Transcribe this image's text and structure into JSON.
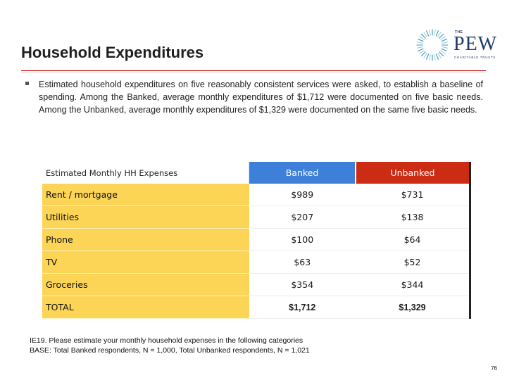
{
  "header": {
    "title": "Household Expenditures",
    "logo": {
      "small_text": "THE",
      "name": "PEW",
      "tagline": "CHARITABLE TRUSTS"
    }
  },
  "bullet": "Estimated household expenditures on five reasonably consistent services were asked, to establish a baseline of spending.  Among the Banked, average monthly expenditures of $1,712 were documented on five basic needs.  Among the Unbanked, average monthly expenditures of $1,329 were documented on the same five basic needs.",
  "table": {
    "header_label": "Estimated Monthly HH Expenses",
    "col_banked": "Banked",
    "col_unbanked": "Unbanked",
    "rows": [
      {
        "label": "Rent / mortgage",
        "banked": "$989",
        "unbanked": "$731"
      },
      {
        "label": "Utilities",
        "banked": "$207",
        "unbanked": "$138"
      },
      {
        "label": "Phone",
        "banked": "$100",
        "unbanked": "$64"
      },
      {
        "label": "TV",
        "banked": "$63",
        "unbanked": "$52"
      },
      {
        "label": "Groceries",
        "banked": "$354",
        "unbanked": "$344"
      },
      {
        "label": "TOTAL",
        "banked": "$1,712",
        "unbanked": "$1,329"
      }
    ]
  },
  "footnote": {
    "line1": "IE19.  Please estimate your monthly household expenses in the following categories",
    "line2": "BASE:  Total Banked respondents, N = 1,000, Total Unbanked respondents, N = 1,021"
  },
  "page_number": "76",
  "colors": {
    "banked": "#3d7fd9",
    "unbanked": "#cc2b14",
    "label_fill": "#fcd456",
    "logo": "#1f3a6b"
  },
  "icons": [
    "pew-sunburst-logo-icon",
    "bullet-square-icon"
  ]
}
